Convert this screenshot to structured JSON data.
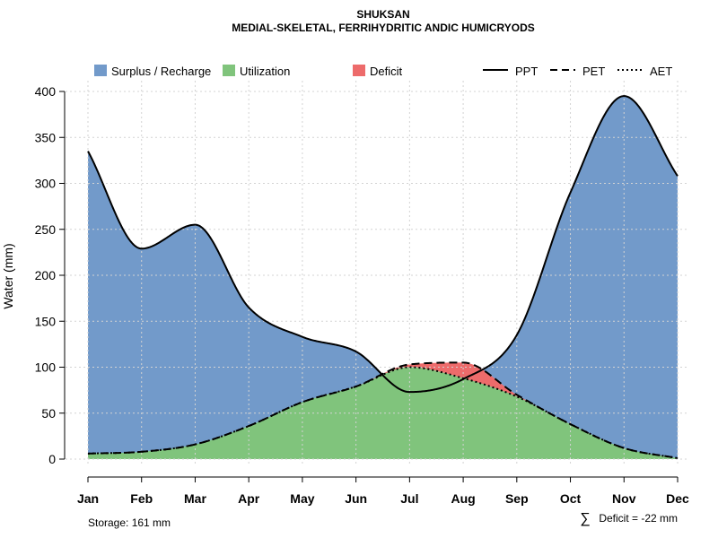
{
  "chart_data": {
    "type": "area",
    "title": "SHUKSAN",
    "subtitle": "MEDIAL-SKELETAL, FERRIHYDRITIC ANDIC HUMICRYODS",
    "xlabel": "",
    "ylabel": "Water (mm)",
    "ylim": [
      0,
      400
    ],
    "yticks": [
      0,
      50,
      100,
      150,
      200,
      250,
      300,
      350,
      400
    ],
    "grid": true,
    "categories": [
      "Jan",
      "Feb",
      "Mar",
      "Apr",
      "May",
      "Jun",
      "Jul",
      "Aug",
      "Sep",
      "Oct",
      "Nov",
      "Dec"
    ],
    "series": [
      {
        "name": "PPT",
        "style": "solid",
        "values": [
          335,
          229,
          255,
          165,
          133,
          117,
          73,
          87,
          135,
          290,
          395,
          308
        ]
      },
      {
        "name": "PET",
        "style": "dashed",
        "values": [
          6,
          8,
          16,
          36,
          62,
          79,
          103,
          105,
          70,
          38,
          12,
          1
        ]
      },
      {
        "name": "AET",
        "style": "dotted",
        "values": [
          6,
          8,
          16,
          36,
          62,
          79,
          100,
          88,
          68,
          38,
          12,
          1
        ]
      }
    ],
    "legend": {
      "placement": "top",
      "fills": [
        {
          "label": "Surplus / Recharge",
          "color": "#729ACA"
        },
        {
          "label": "Utilization",
          "color": "#80C47C"
        },
        {
          "label": "Deficit",
          "color": "#ED6B6B"
        }
      ],
      "lines": [
        {
          "label": "PPT",
          "style": "solid"
        },
        {
          "label": "PET",
          "style": "dashed"
        },
        {
          "label": "AET",
          "style": "dotted"
        }
      ]
    },
    "annotations": {
      "storage": "Storage: 161 mm",
      "deficit_symbol": "∑",
      "deficit": "Deficit = -22 mm"
    }
  }
}
